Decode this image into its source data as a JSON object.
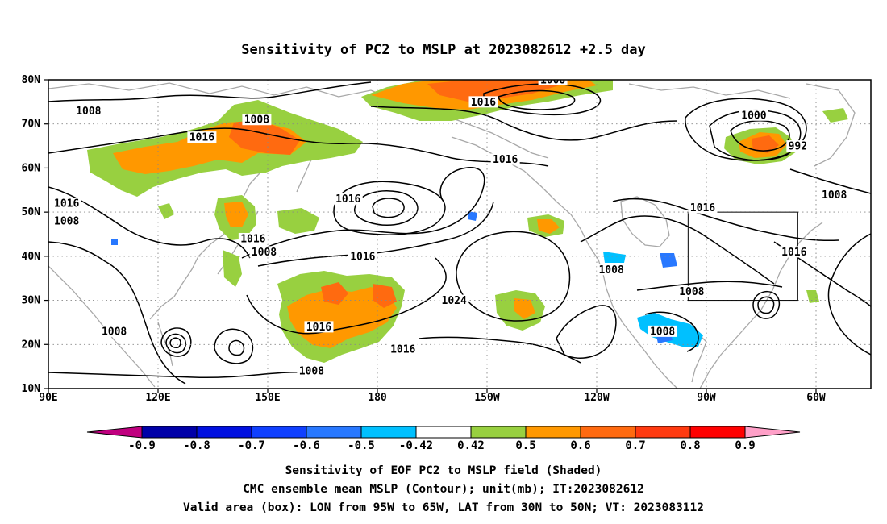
{
  "title": "Sensitivity of PC2 to MSLP at 2023082612 +2.5 day",
  "axes": {
    "lat_ticks": [
      "80N",
      "70N",
      "60N",
      "50N",
      "40N",
      "30N",
      "20N",
      "10N"
    ],
    "lon_ticks": [
      "90E",
      "120E",
      "150E",
      "180",
      "150W",
      "120W",
      "90W",
      "60W"
    ]
  },
  "map_extent": {
    "lon_min": 90,
    "lon_max": 315,
    "lat_min": 10,
    "lat_max": 80
  },
  "colorbar": {
    "tick_labels": [
      "-0.9",
      "-0.8",
      "-0.7",
      "-0.6",
      "-0.5",
      "-0.42",
      "0.42",
      "0.5",
      "0.6",
      "0.7",
      "0.8",
      "0.9"
    ],
    "colors": [
      "#c0007f",
      "#0000a8",
      "#0010e0",
      "#1040ff",
      "#2878ff",
      "#00c0ff",
      "#ffffff",
      "#98d040",
      "#ff9800",
      "#ff6a10",
      "#ff3a10",
      "#ff0000",
      "#ffa0c8"
    ]
  },
  "contour_labels": [
    {
      "text": "1008",
      "lon": 101,
      "lat": 73
    },
    {
      "text": "1008",
      "lon": 147,
      "lat": 71
    },
    {
      "text": "1016",
      "lon": 132,
      "lat": 67
    },
    {
      "text": "1016",
      "lon": 172,
      "lat": 53
    },
    {
      "text": "1016",
      "lon": 209,
      "lat": 75
    },
    {
      "text": "1008",
      "lon": 228,
      "lat": 80
    },
    {
      "text": "1016",
      "lon": 215,
      "lat": 62
    },
    {
      "text": "1008",
      "lon": 95,
      "lat": 48
    },
    {
      "text": "1016",
      "lon": 95,
      "lat": 52
    },
    {
      "text": "1016",
      "lon": 146,
      "lat": 44
    },
    {
      "text": "1008",
      "lon": 149,
      "lat": 41
    },
    {
      "text": "1016",
      "lon": 176,
      "lat": 40
    },
    {
      "text": "1024",
      "lon": 201,
      "lat": 30
    },
    {
      "text": "1016",
      "lon": 187,
      "lat": 19
    },
    {
      "text": "1016",
      "lon": 164,
      "lat": 24
    },
    {
      "text": "1008",
      "lon": 108,
      "lat": 23
    },
    {
      "text": "1008",
      "lon": 162,
      "lat": 14
    },
    {
      "text": "1008",
      "lon": 244,
      "lat": 37
    },
    {
      "text": "1016",
      "lon": 269,
      "lat": 51
    },
    {
      "text": "1000",
      "lon": 283,
      "lat": 72
    },
    {
      "text": "992",
      "lon": 295,
      "lat": 65
    },
    {
      "text": "1008",
      "lon": 305,
      "lat": 54
    },
    {
      "text": "1016",
      "lon": 294,
      "lat": 41
    },
    {
      "text": "1008",
      "lon": 266,
      "lat": 32
    },
    {
      "text": "1008",
      "lon": 258,
      "lat": 23
    }
  ],
  "valid_box": {
    "lon_min": 265,
    "lon_max": 295,
    "lat_min": 30,
    "lat_max": 50
  },
  "footer": {
    "line1": "Sensitivity of EOF PC2 to MSLP field (Shaded)",
    "line2": "CMC ensemble mean MSLP (Contour); unit(mb); IT:2023082612",
    "line3": "Valid area (box): LON from 95W to 65W, LAT from 30N to 50N; VT: 2023083112"
  }
}
